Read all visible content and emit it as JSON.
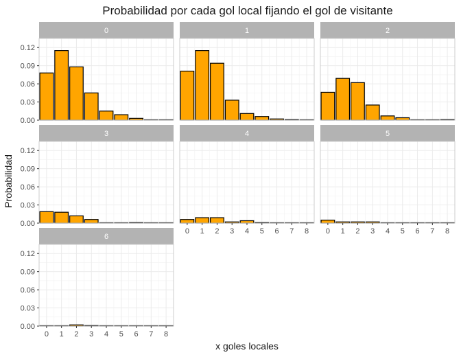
{
  "chart_data": {
    "type": "bar",
    "title": "Probabilidad por cada gol local fijando el gol de visitante",
    "xlabel": "x goles locales",
    "ylabel": "Probabilidad",
    "x_categories": [
      "0",
      "1",
      "2",
      "3",
      "4",
      "5",
      "6",
      "7",
      "8"
    ],
    "y_ticks": [
      "0.00",
      "0.03",
      "0.06",
      "0.09",
      "0.12"
    ],
    "ylim": [
      0,
      0.135
    ],
    "grid": true,
    "bar_fill": "#FFA500",
    "bar_outline": "#000000",
    "strip_fill": "#B3B3B3",
    "panels": [
      {
        "label": "0",
        "values": [
          0.078,
          0.115,
          0.088,
          0.045,
          0.015,
          0.009,
          0.003,
          0.0005,
          0.0005
        ]
      },
      {
        "label": "1",
        "values": [
          0.081,
          0.115,
          0.094,
          0.033,
          0.011,
          0.006,
          0.002,
          0.001,
          0.0005
        ]
      },
      {
        "label": "2",
        "values": [
          0.046,
          0.069,
          0.062,
          0.025,
          0.007,
          0.004,
          0.0005,
          0.0005,
          0.001
        ]
      },
      {
        "label": "3",
        "values": [
          0.019,
          0.018,
          0.012,
          0.006,
          0.0005,
          0.0005,
          0.001,
          0.0005,
          0.0005
        ]
      },
      {
        "label": "4",
        "values": [
          0.006,
          0.009,
          0.009,
          0.002,
          0.004,
          0.001,
          0.0005,
          0.0005,
          0.0005
        ]
      },
      {
        "label": "5",
        "values": [
          0.005,
          0.002,
          0.002,
          0.002,
          0.0005,
          0.0005,
          0.0005,
          0.0005,
          0.0005
        ]
      },
      {
        "label": "6",
        "values": [
          0.0005,
          0.0005,
          0.002,
          0.001,
          0.0005,
          0.0005,
          0.0005,
          0.0005,
          0.0005
        ]
      }
    ]
  }
}
